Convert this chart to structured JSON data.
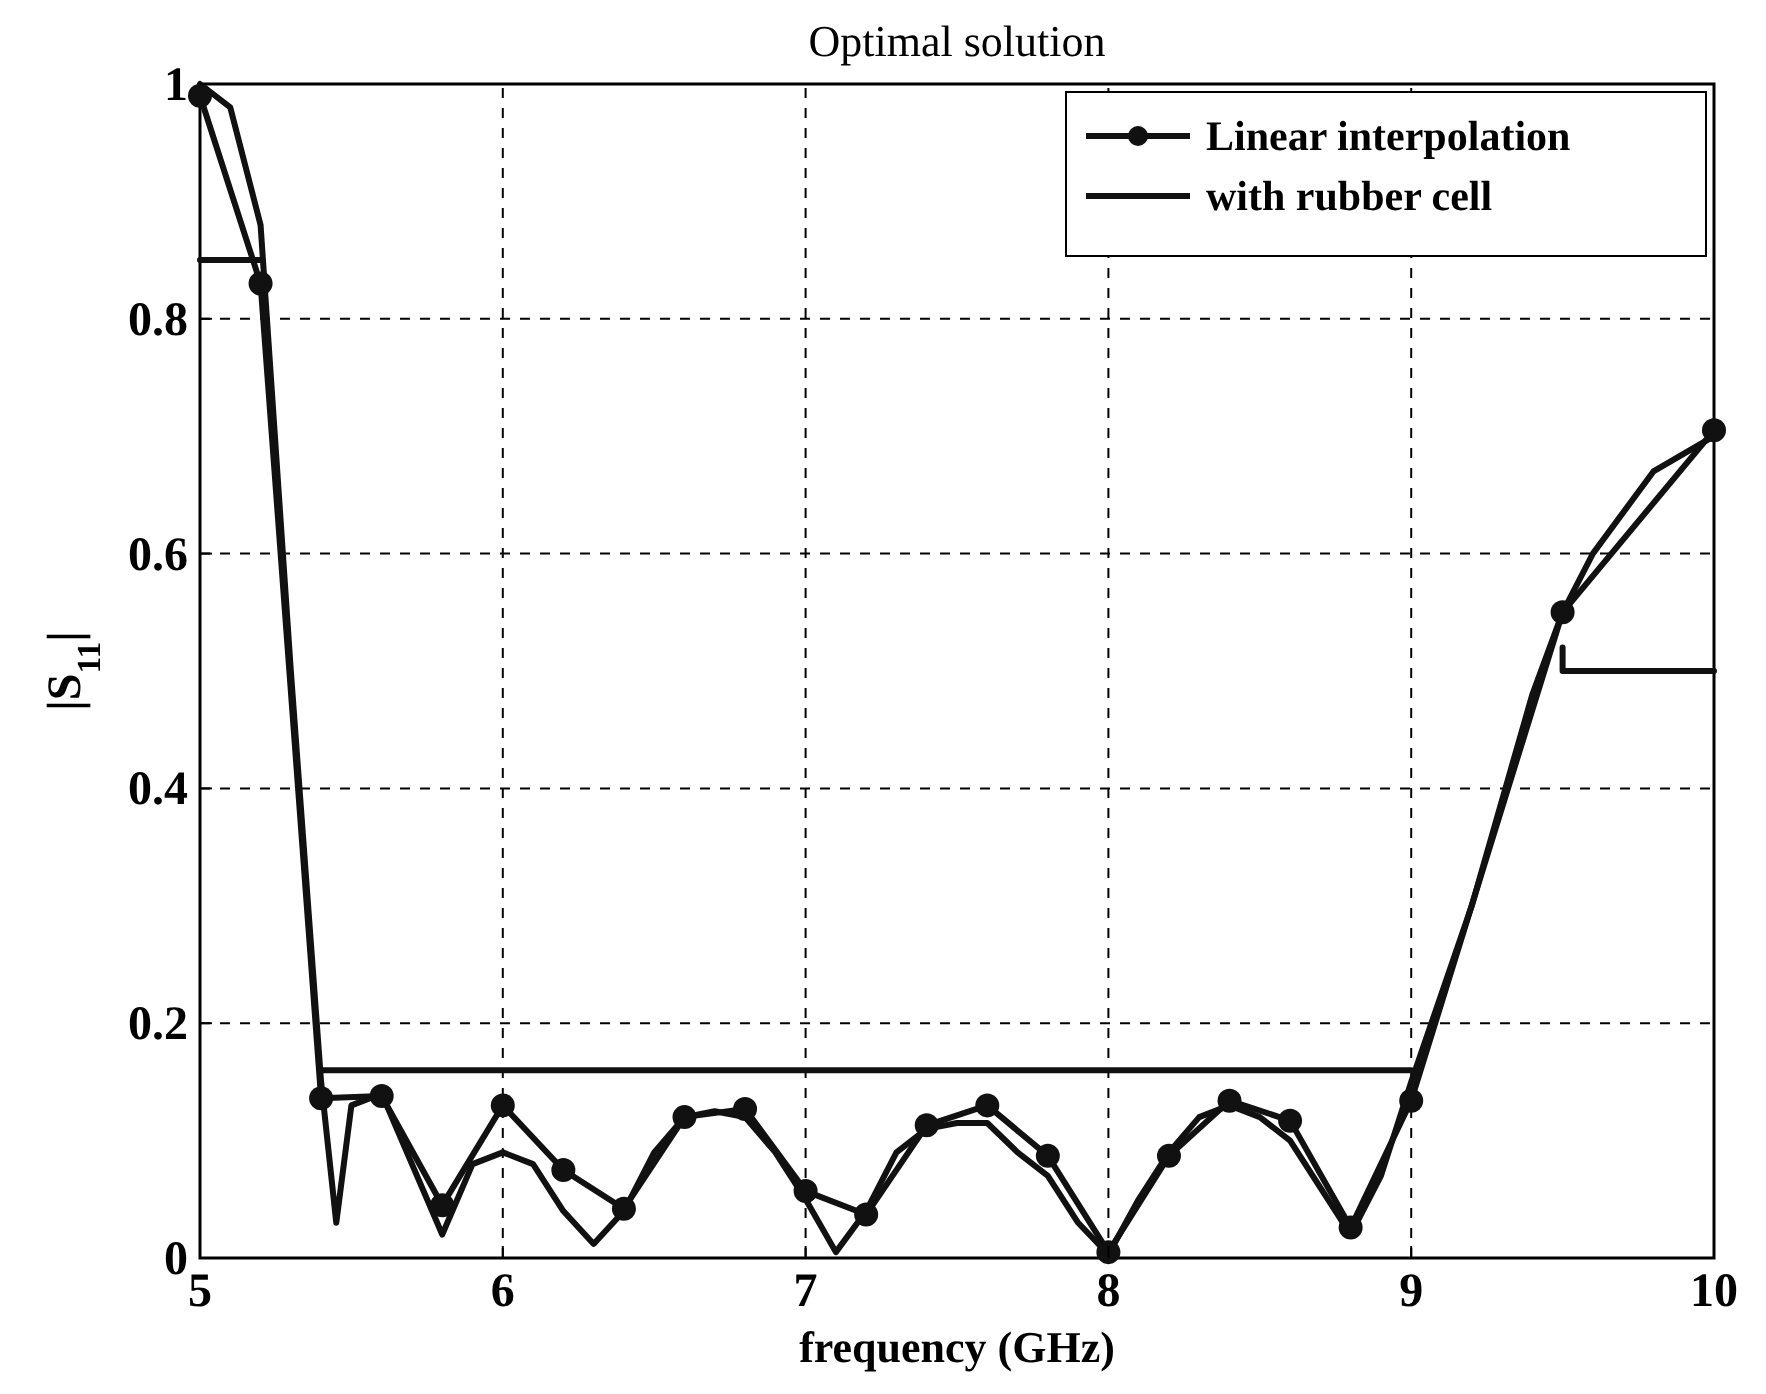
{
  "chart_data": {
    "type": "line",
    "title": "Optimal solution",
    "xlabel": "frequency (GHz)",
    "ylabel": "|S$_{11}$|",
    "xlim": [
      5,
      10
    ],
    "ylim": [
      0,
      1
    ],
    "xticks": [
      5,
      6,
      7,
      8,
      9,
      10
    ],
    "yticks": [
      0,
      0.2,
      0.4,
      0.6,
      0.8,
      1
    ],
    "grid": true,
    "legend": "top right",
    "line_style": "solid",
    "series": [
      {
        "name": "Linear interpolation",
        "color": "#111111",
        "marker": "circle",
        "x": [
          5,
          5.2,
          5.4,
          5.6,
          5.8,
          6,
          6.2,
          6.4,
          6.6,
          6.8,
          7,
          7.2,
          7.4,
          7.6,
          7.8,
          8,
          8.2,
          8.4,
          8.6,
          8.8,
          9,
          9.5,
          10
        ],
        "values": [
          0.99,
          0.83,
          0.136,
          0.138,
          0.045,
          0.13,
          0.075,
          0.042,
          0.12,
          0.127,
          0.057,
          0.037,
          0.113,
          0.13,
          0.087,
          0.005,
          0.087,
          0.134,
          0.117,
          0.026,
          0.134,
          0.55,
          0.705
        ]
      },
      {
        "name": "with rubber cell",
        "color": "#111111",
        "marker": "none",
        "x": [
          5,
          5.1,
          5.2,
          5.3,
          5.4,
          5.45,
          5.5,
          5.6,
          5.7,
          5.8,
          5.9,
          6,
          6.1,
          6.2,
          6.3,
          6.4,
          6.5,
          6.6,
          6.7,
          6.8,
          6.9,
          7,
          7.1,
          7.2,
          7.3,
          7.4,
          7.5,
          7.6,
          7.7,
          7.8,
          7.9,
          8,
          8.1,
          8.2,
          8.3,
          8.4,
          8.5,
          8.6,
          8.7,
          8.8,
          8.9,
          9,
          9.2,
          9.4,
          9.5,
          9.6,
          9.8,
          10
        ],
        "values": [
          1,
          0.98,
          0.88,
          0.5,
          0.15,
          0.03,
          0.13,
          0.14,
          0.08,
          0.02,
          0.08,
          0.09,
          0.08,
          0.04,
          0.012,
          0.04,
          0.09,
          0.12,
          0.125,
          0.12,
          0.09,
          0.05,
          0.005,
          0.04,
          0.09,
          0.11,
          0.115,
          0.115,
          0.09,
          0.07,
          0.03,
          0.003,
          0.05,
          0.09,
          0.12,
          0.13,
          0.12,
          0.1,
          0.06,
          0.02,
          0.07,
          0.15,
          0.3,
          0.48,
          0.55,
          0.6,
          0.67,
          0.7
        ]
      },
      {
        "color": "#111111",
        "marker": "none",
        "x": [
          5,
          5.2,
          5.3,
          5.4,
          9,
          9.25,
          9.5,
          9.5,
          10
        ],
        "values": [
          0.85,
          0.85,
          null,
          0.16,
          0.16,
          null,
          0.52,
          0.5,
          0.5
        ]
      }
    ]
  }
}
